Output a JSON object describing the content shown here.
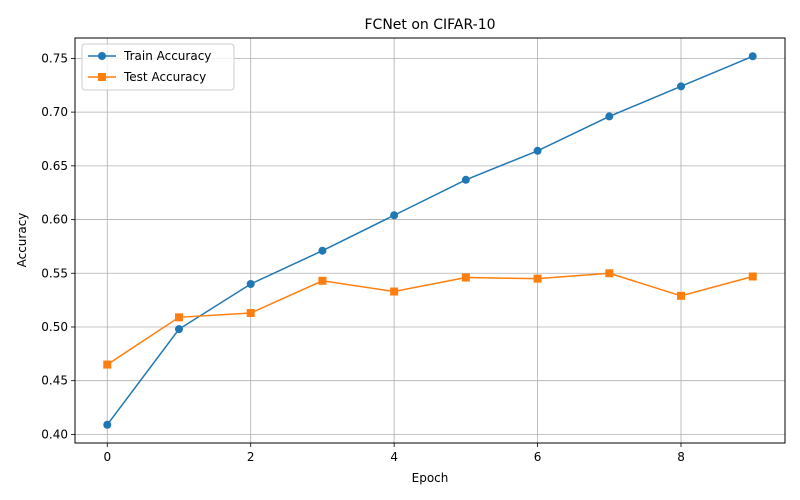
{
  "chart_data": {
    "type": "line",
    "title": "FCNet on CIFAR-10",
    "xlabel": "Epoch",
    "ylabel": "Accuracy",
    "x": [
      0,
      1,
      2,
      3,
      4,
      5,
      6,
      7,
      8,
      9
    ],
    "xlim": [
      -0.45,
      9.45
    ],
    "ylim": [
      0.392,
      0.769
    ],
    "xticks": [
      0,
      2,
      4,
      6,
      8
    ],
    "yticks": [
      0.4,
      0.45,
      0.5,
      0.55,
      0.6,
      0.65,
      0.7,
      0.75
    ],
    "ytick_labels": [
      "0.40",
      "0.45",
      "0.50",
      "0.55",
      "0.60",
      "0.65",
      "0.70",
      "0.75"
    ],
    "grid": true,
    "legend_position": "top-left",
    "series": [
      {
        "name": "Train Accuracy",
        "color": "#1f77b4",
        "marker": "circle",
        "values": [
          0.409,
          0.498,
          0.54,
          0.571,
          0.604,
          0.637,
          0.664,
          0.696,
          0.724,
          0.752
        ]
      },
      {
        "name": "Test Accuracy",
        "color": "#ff7f0e",
        "marker": "square",
        "values": [
          0.465,
          0.509,
          0.513,
          0.543,
          0.533,
          0.546,
          0.545,
          0.55,
          0.529,
          0.547
        ]
      }
    ]
  }
}
